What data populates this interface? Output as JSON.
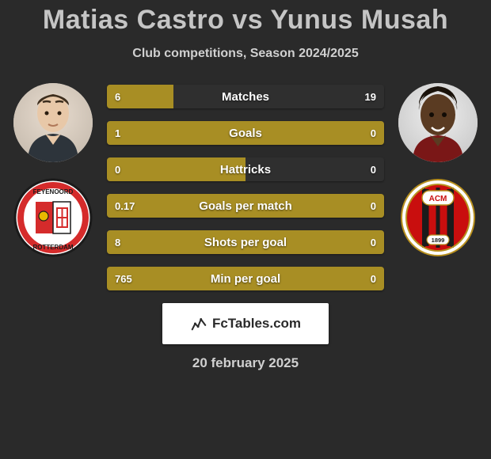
{
  "title": "Matias Castro vs Yunus Musah",
  "subtitle": "Club competitions, Season 2024/2025",
  "date": "20 february 2025",
  "watermark_text": "FcTables.com",
  "background_color": "#2a2a2a",
  "title_color": "#c5c5c5",
  "subtitle_color": "#d0d0d0",
  "bar_fill": "#a88e24",
  "bar_empty": "#2f2f2f",
  "bar_text_color": "#ffffff",
  "bars": [
    {
      "label": "Matches",
      "left": "6",
      "right": "19",
      "left_ratio": 0.24
    },
    {
      "label": "Goals",
      "left": "1",
      "right": "0",
      "left_ratio": 1.0
    },
    {
      "label": "Hattricks",
      "left": "0",
      "right": "0",
      "left_ratio": 0.5
    },
    {
      "label": "Goals per match",
      "left": "0.17",
      "right": "0",
      "left_ratio": 1.0
    },
    {
      "label": "Shots per goal",
      "left": "8",
      "right": "0",
      "left_ratio": 1.0
    },
    {
      "label": "Min per goal",
      "left": "765",
      "right": "0",
      "left_ratio": 1.0
    }
  ],
  "left_player": {
    "name": "Matias Castro",
    "club": "Feyenoord",
    "club_colors": [
      "#d52b2b",
      "#ffffff",
      "#1b1b1b"
    ]
  },
  "right_player": {
    "name": "Yunus Musah",
    "club": "AC Milan",
    "club_colors": [
      "#c90e0e",
      "#1b1b1b",
      "#ffffff"
    ]
  }
}
